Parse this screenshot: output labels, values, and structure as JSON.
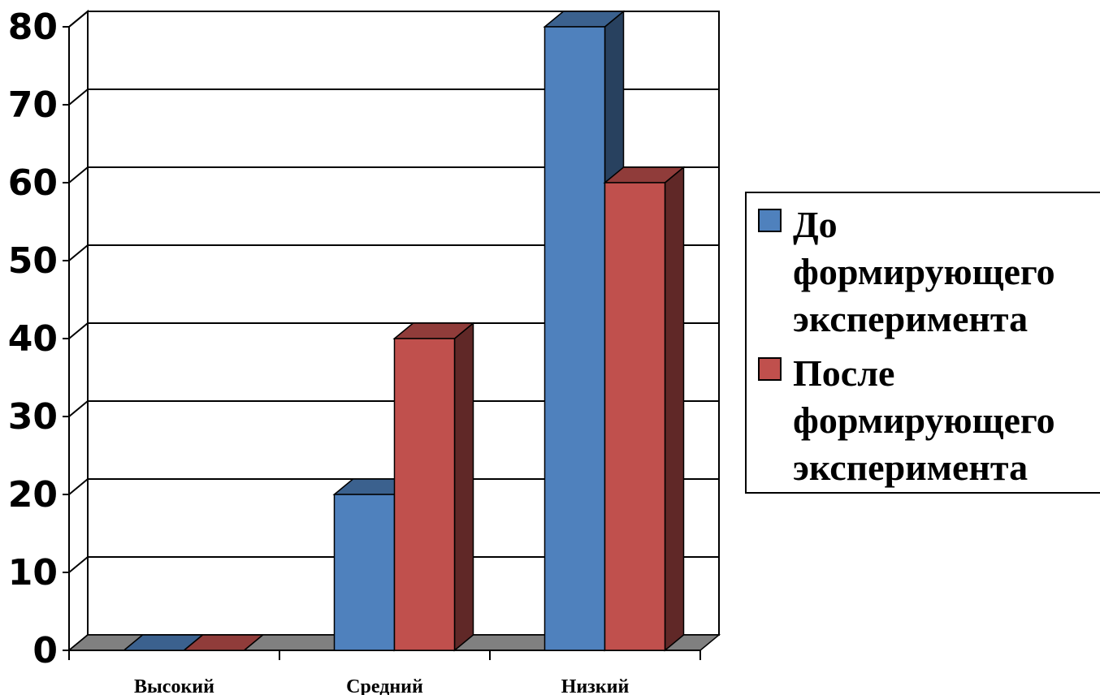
{
  "chart_data": {
    "type": "bar",
    "categories": [
      "Высокий",
      "Средний",
      "Низкий"
    ],
    "series": [
      {
        "name": "До формирующего эксперимента",
        "values": [
          0,
          20,
          80
        ],
        "color": "#4F81BD"
      },
      {
        "name": "После формирующего эксперимента",
        "values": [
          0,
          40,
          60
        ],
        "color": "#C0504D"
      }
    ],
    "yticks": [
      0,
      10,
      20,
      30,
      40,
      50,
      60,
      70,
      80
    ],
    "ylim": [
      0,
      80
    ],
    "grid": true,
    "three_d": true,
    "legend_position": "right",
    "legend_lines": [
      [
        "До",
        "формирующего",
        "эксперимента"
      ],
      [
        "После",
        "формирующего",
        "эксперимента"
      ]
    ]
  }
}
